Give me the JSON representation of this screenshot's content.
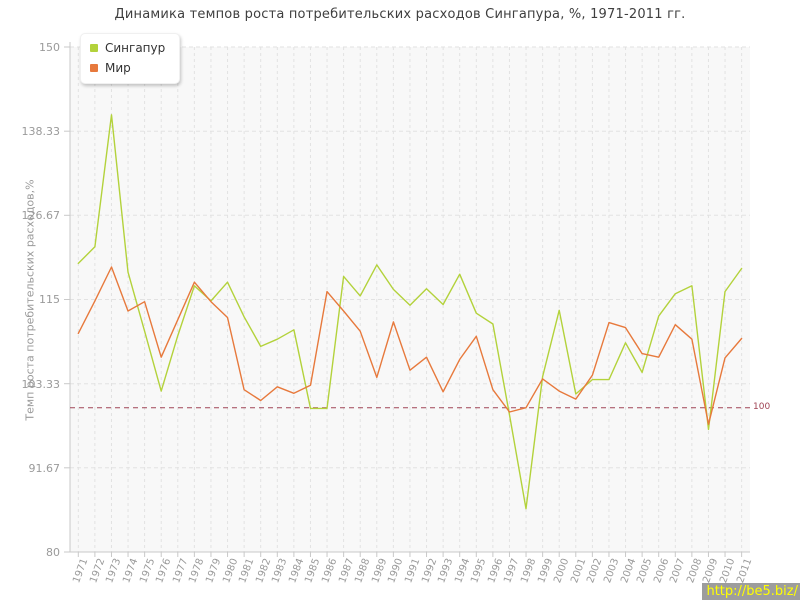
{
  "title": "Динамика темпов роста потребительских расходов Сингапура, %, 1971-2011 гг.",
  "watermark": "http://be5.biz/",
  "chart_data": {
    "type": "line",
    "title": "Динамика темпов роста потребительских расходов Сингапура, %, 1971-2011 гг.",
    "xlabel": "",
    "ylabel": "Темп роста потребительских расходов,%",
    "ylim": [
      80,
      150
    ],
    "grid": true,
    "legend_position": "top-left",
    "y_tick_labels": [
      "80",
      "91.67",
      "103.33",
      "115",
      "126.67",
      "138.33",
      "150"
    ],
    "y_ticks": [
      80,
      91.67,
      103.33,
      115,
      126.67,
      138.33,
      150
    ],
    "x": [
      1971,
      1972,
      1973,
      1974,
      1975,
      1976,
      1977,
      1978,
      1979,
      1980,
      1981,
      1982,
      1983,
      1984,
      1985,
      1986,
      1987,
      1988,
      1989,
      1990,
      1991,
      1992,
      1993,
      1994,
      1995,
      1996,
      1997,
      1998,
      1999,
      2000,
      2001,
      2002,
      2003,
      2004,
      2005,
      2006,
      2007,
      2008,
      2009,
      2010,
      2011
    ],
    "series": [
      {
        "name": "Сингапур",
        "color": "#b3d23b",
        "values": [
          120.0,
          122.3,
          140.6,
          118.8,
          110.6,
          102.3,
          110.0,
          116.9,
          114.8,
          117.4,
          112.6,
          108.5,
          109.5,
          110.8,
          99.9,
          99.9,
          118.2,
          115.5,
          119.8,
          116.4,
          114.2,
          116.5,
          114.3,
          118.5,
          113.1,
          111.6,
          99.0,
          86.0,
          104.3,
          113.5,
          101.9,
          103.9,
          103.9,
          109.0,
          104.9,
          112.7,
          115.8,
          116.9,
          97.0,
          116.1,
          119.3
        ]
      },
      {
        "name": "Мир",
        "color": "#e7793c",
        "values": [
          110.3,
          114.8,
          119.5,
          113.4,
          114.7,
          107.0,
          112.2,
          117.4,
          114.7,
          112.5,
          102.5,
          101.0,
          102.9,
          102.0,
          103.1,
          116.1,
          113.4,
          110.6,
          104.2,
          111.9,
          105.2,
          107.0,
          102.2,
          106.7,
          109.9,
          102.5,
          99.4,
          100.0,
          104.0,
          102.3,
          101.2,
          104.5,
          111.8,
          111.1,
          107.5,
          107.0,
          111.5,
          109.5,
          97.7,
          106.9,
          109.6
        ]
      }
    ],
    "guide_line": {
      "value": 100,
      "label": "100",
      "color": "#a04455"
    }
  },
  "style_colors": {
    "plot_bg": "#f8f8f8",
    "grid": "#e2e2e2",
    "axis": "#c9c9c9",
    "tick_text": "#9a9a9a"
  }
}
